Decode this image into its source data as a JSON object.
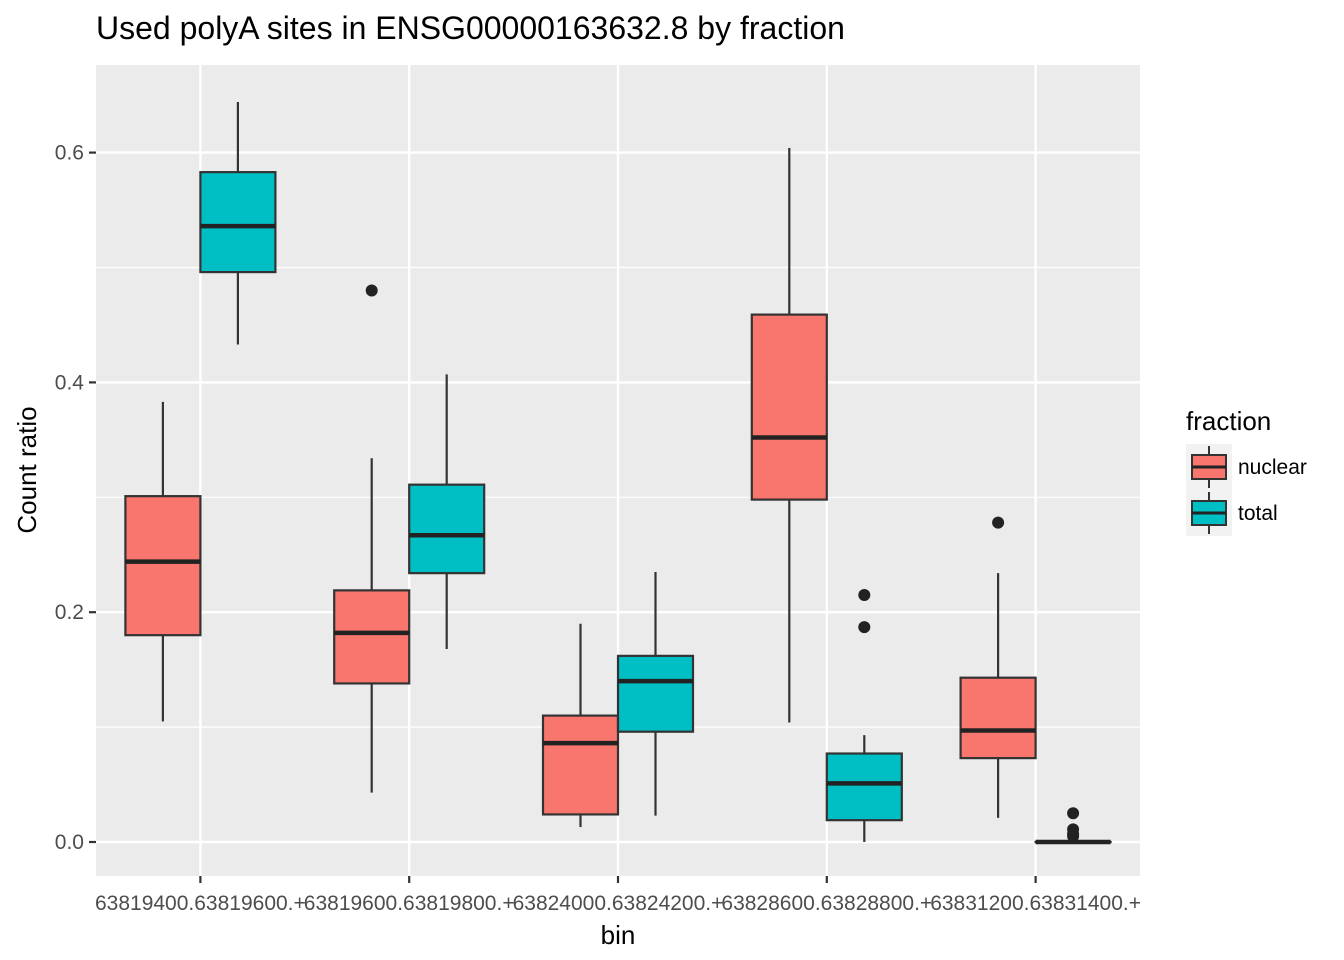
{
  "chart_data": {
    "type": "boxplot",
    "title": "Used polyA sites in ENSG00000163632.8 by fraction",
    "xlabel": "bin",
    "ylabel": "Count ratio",
    "ylim": [
      -0.028,
      0.67
    ],
    "yticks": [
      0.0,
      0.2,
      0.4,
      0.6
    ],
    "ytick_labels": [
      "0.0",
      "0.2",
      "0.4",
      "0.6"
    ],
    "grid": true,
    "legend": {
      "title": "fraction",
      "placement": "right",
      "entries": [
        {
          "name": "nuclear",
          "color": "#F8766D"
        },
        {
          "name": "total",
          "color": "#00BFC4"
        }
      ]
    },
    "categories": [
      "63819400.63819600.+",
      "63819600.63819800.+",
      "63824000.63824200.+",
      "63828600.63828800.+",
      "63831200.63831400.+"
    ],
    "series": [
      {
        "name": "nuclear",
        "color": "#F8766D",
        "boxes": [
          {
            "min": 0.105,
            "q1": 0.18,
            "median": 0.244,
            "q3": 0.301,
            "max": 0.383,
            "outliers": []
          },
          {
            "min": 0.043,
            "q1": 0.138,
            "median": 0.182,
            "q3": 0.219,
            "max": 0.334,
            "outliers": [
              0.48
            ]
          },
          {
            "min": 0.013,
            "q1": 0.024,
            "median": 0.086,
            "q3": 0.11,
            "max": 0.19,
            "outliers": []
          },
          {
            "min": 0.104,
            "q1": 0.298,
            "median": 0.352,
            "q3": 0.459,
            "max": 0.604,
            "outliers": []
          },
          {
            "min": 0.021,
            "q1": 0.073,
            "median": 0.097,
            "q3": 0.143,
            "max": 0.234,
            "outliers": [
              0.278
            ]
          }
        ]
      },
      {
        "name": "total",
        "color": "#00BFC4",
        "boxes": [
          {
            "min": 0.433,
            "q1": 0.496,
            "median": 0.536,
            "q3": 0.583,
            "max": 0.644,
            "outliers": []
          },
          {
            "min": 0.168,
            "q1": 0.234,
            "median": 0.267,
            "q3": 0.311,
            "max": 0.407,
            "outliers": []
          },
          {
            "min": 0.023,
            "q1": 0.096,
            "median": 0.14,
            "q3": 0.162,
            "max": 0.235,
            "outliers": []
          },
          {
            "min": 0.0,
            "q1": 0.019,
            "median": 0.051,
            "q3": 0.077,
            "max": 0.093,
            "outliers": [
              0.215,
              0.187
            ]
          },
          {
            "min": 0.0,
            "q1": 0.0,
            "median": 0.0,
            "q3": 0.0,
            "max": 0.0,
            "outliers": [
              0.025,
              0.011,
              0.007,
              0.005
            ]
          }
        ]
      }
    ]
  }
}
